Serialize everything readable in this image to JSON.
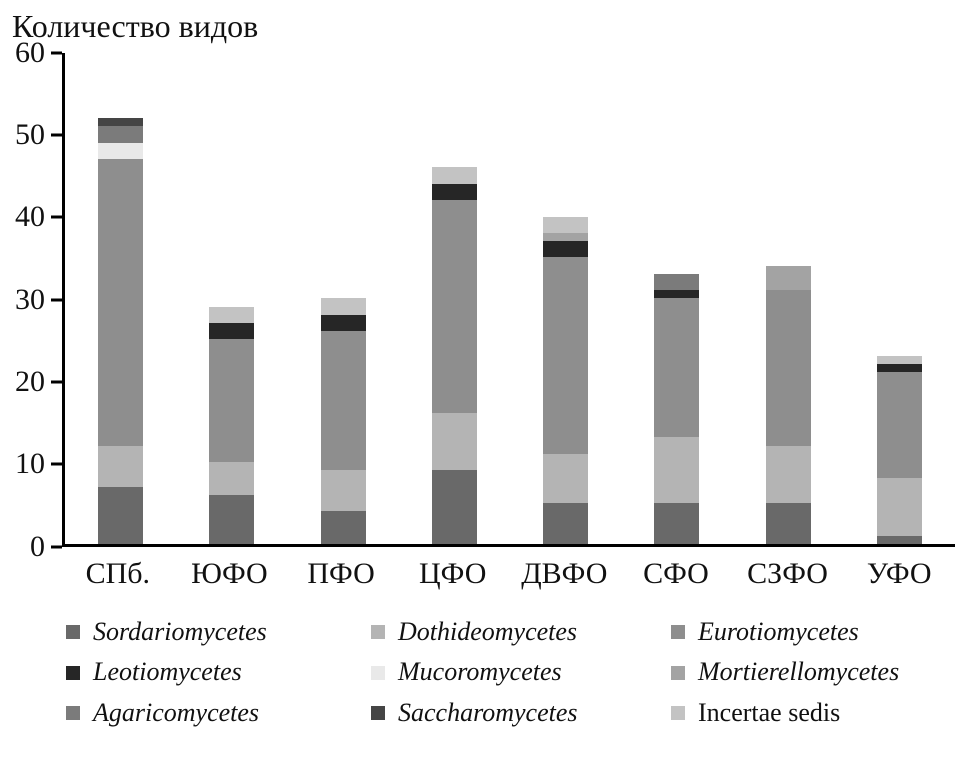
{
  "chart_data": {
    "type": "bar",
    "stacked": true,
    "title": "Количество видов",
    "xlabel": "",
    "ylabel": "",
    "ylim": [
      0,
      60
    ],
    "yticks": [
      0,
      10,
      20,
      30,
      40,
      50,
      60
    ],
    "grid": false,
    "legend_position": "bottom",
    "categories": [
      "СПб.",
      "ЮФО",
      "ПФО",
      "ЦФО",
      "ДВФО",
      "СФО",
      "СЗФО",
      "УФО"
    ],
    "totals": [
      52,
      29,
      30,
      46,
      40,
      33,
      34,
      23
    ],
    "series": [
      {
        "name": "Sordariomycetes",
        "color": "#696969",
        "italic": true,
        "values": [
          7,
          6,
          4,
          9,
          5,
          5,
          5,
          1
        ]
      },
      {
        "name": "Dothideomycetes",
        "color": "#b4b4b4",
        "italic": true,
        "values": [
          5,
          4,
          5,
          7,
          6,
          8,
          7,
          7
        ]
      },
      {
        "name": "Eurotiomycetes",
        "color": "#8e8e8e",
        "italic": true,
        "values": [
          35,
          15,
          17,
          26,
          24,
          17,
          19,
          13
        ]
      },
      {
        "name": "Leotiomycetes",
        "color": "#262626",
        "italic": true,
        "values": [
          0,
          2,
          2,
          2,
          2,
          1,
          0,
          1
        ]
      },
      {
        "name": "Mucoromycetes",
        "color": "#e9e9e9",
        "italic": true,
        "values": [
          2,
          0,
          0,
          0,
          0,
          0,
          0,
          0
        ]
      },
      {
        "name": "Mortierellomycetes",
        "color": "#a3a3a3",
        "italic": true,
        "values": [
          0,
          0,
          0,
          0,
          1,
          0,
          3,
          0
        ]
      },
      {
        "name": "Agaricomycetes",
        "color": "#7b7b7b",
        "italic": true,
        "values": [
          2,
          0,
          0,
          0,
          0,
          2,
          0,
          0
        ]
      },
      {
        "name": "Saccharomycetes",
        "color": "#454545",
        "italic": true,
        "values": [
          1,
          0,
          0,
          0,
          0,
          0,
          0,
          0
        ]
      },
      {
        "name": "Incertae sedis",
        "color": "#c3c3c3",
        "italic": false,
        "values": [
          0,
          2,
          2,
          2,
          2,
          0,
          0,
          1
        ]
      }
    ]
  }
}
